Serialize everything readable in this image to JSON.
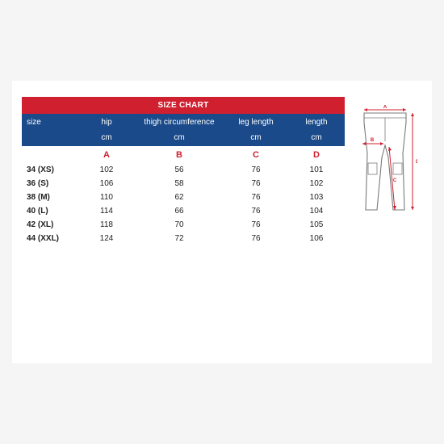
{
  "title": "SIZE CHART",
  "columns": {
    "size_label": "size",
    "a_label": "hip",
    "b_label": "thigh circumference",
    "c_label": "leg length",
    "d_label": "length",
    "unit": "cm",
    "a_letter": "A",
    "b_letter": "B",
    "c_letter": "C",
    "d_letter": "D"
  },
  "rows": [
    {
      "size": "34 (XS)",
      "a": "102",
      "b": "56",
      "c": "76",
      "d": "101"
    },
    {
      "size": "36 (S)",
      "a": "106",
      "b": "58",
      "c": "76",
      "d": "102"
    },
    {
      "size": "38 (M)",
      "a": "110",
      "b": "62",
      "c": "76",
      "d": "103"
    },
    {
      "size": "40 (L)",
      "a": "114",
      "b": "66",
      "c": "76",
      "d": "104"
    },
    {
      "size": "42 (XL)",
      "a": "118",
      "b": "70",
      "c": "76",
      "d": "105"
    },
    {
      "size": "44 (XXL)",
      "a": "124",
      "b": "72",
      "c": "76",
      "d": "106"
    }
  ],
  "colors": {
    "header_bg": "#1a4a8a",
    "title_bg": "#d01f2e",
    "letter_color": "#d01f2e",
    "outline": "#7a7a7a",
    "arrow": "#d01f2e"
  },
  "diagram": {
    "labels": {
      "a": "A",
      "b": "B",
      "c": "C",
      "d": "D"
    }
  }
}
